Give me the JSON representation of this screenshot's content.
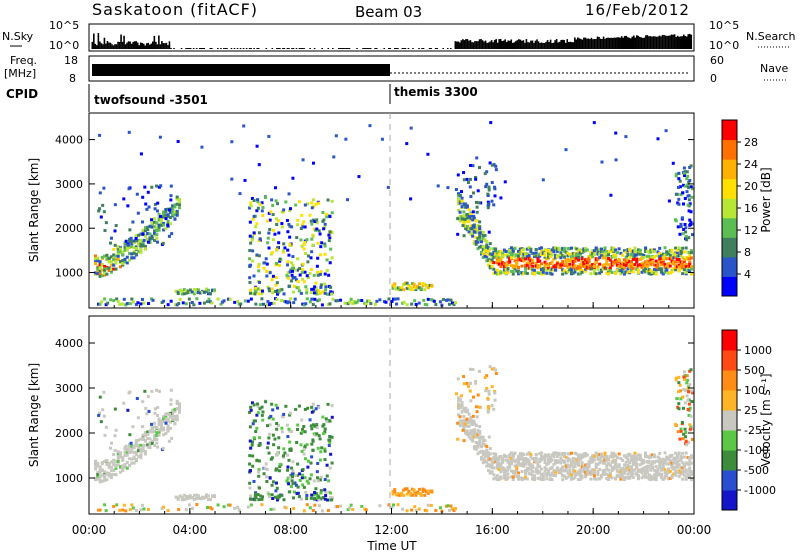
{
  "header": {
    "station": "Saskatoon (fitACF)",
    "beam": "Beam 03",
    "date": "16/Feb/2012"
  },
  "strip_panels": {
    "nsky": {
      "left_label": "N.Sky",
      "right_label": "N.Search",
      "left_ticks": [
        "10^5",
        "10^0"
      ],
      "right_ticks": [
        "10^5",
        "10^0"
      ]
    },
    "freq": {
      "left_label_1": "Freq.",
      "left_label_2": "[MHz]",
      "right_label": "Nave",
      "left_ticks": [
        "18",
        "8"
      ],
      "right_ticks": [
        "60",
        "0"
      ]
    },
    "cpid": {
      "label": "CPID",
      "modes": [
        {
          "name": "twofsound -3501",
          "start_hour": 0
        },
        {
          "name": "themis 3300",
          "start_hour": 12
        }
      ]
    }
  },
  "chart_data": [
    {
      "type": "heatmap",
      "name": "power",
      "ylabel": "Slant Range [km]",
      "ylim": [
        200,
        4600
      ],
      "yticks": [
        "1000",
        "2000",
        "3000",
        "4000"
      ],
      "xlim": [
        0,
        24
      ],
      "colorbar": {
        "label": "Power [dB]",
        "ticks": [
          "28",
          "24",
          "20",
          "16",
          "12",
          "8",
          "4"
        ],
        "colors": [
          "#0000ff",
          "#2a55c8",
          "#3f7f5f",
          "#5cbd55",
          "#b8e635",
          "#ffe000",
          "#ffb000",
          "#ff7000",
          "#ff0000"
        ]
      }
    },
    {
      "type": "heatmap",
      "name": "velocity",
      "ylabel": "Slant Range [km]",
      "ylim": [
        200,
        4600
      ],
      "yticks": [
        "1000",
        "2000",
        "3000",
        "4000"
      ],
      "xlim": [
        0,
        24
      ],
      "xticks": [
        "00:00",
        "04:00",
        "08:00",
        "12:00",
        "16:00",
        "20:00",
        "00:00"
      ],
      "xlabel": "Time UT",
      "colorbar": {
        "label": "Velocity [m s⁻¹]",
        "ticks": [
          "1000",
          "500",
          "100",
          "25",
          "-25",
          "-100",
          "-500",
          "-1000"
        ],
        "colors": [
          "#1414c8",
          "#2a4ed2",
          "#3c8c3c",
          "#5ac846",
          "#c8c8c0",
          "#ffb428",
          "#ff8c14",
          "#ff4a14",
          "#ff0000"
        ]
      }
    }
  ]
}
